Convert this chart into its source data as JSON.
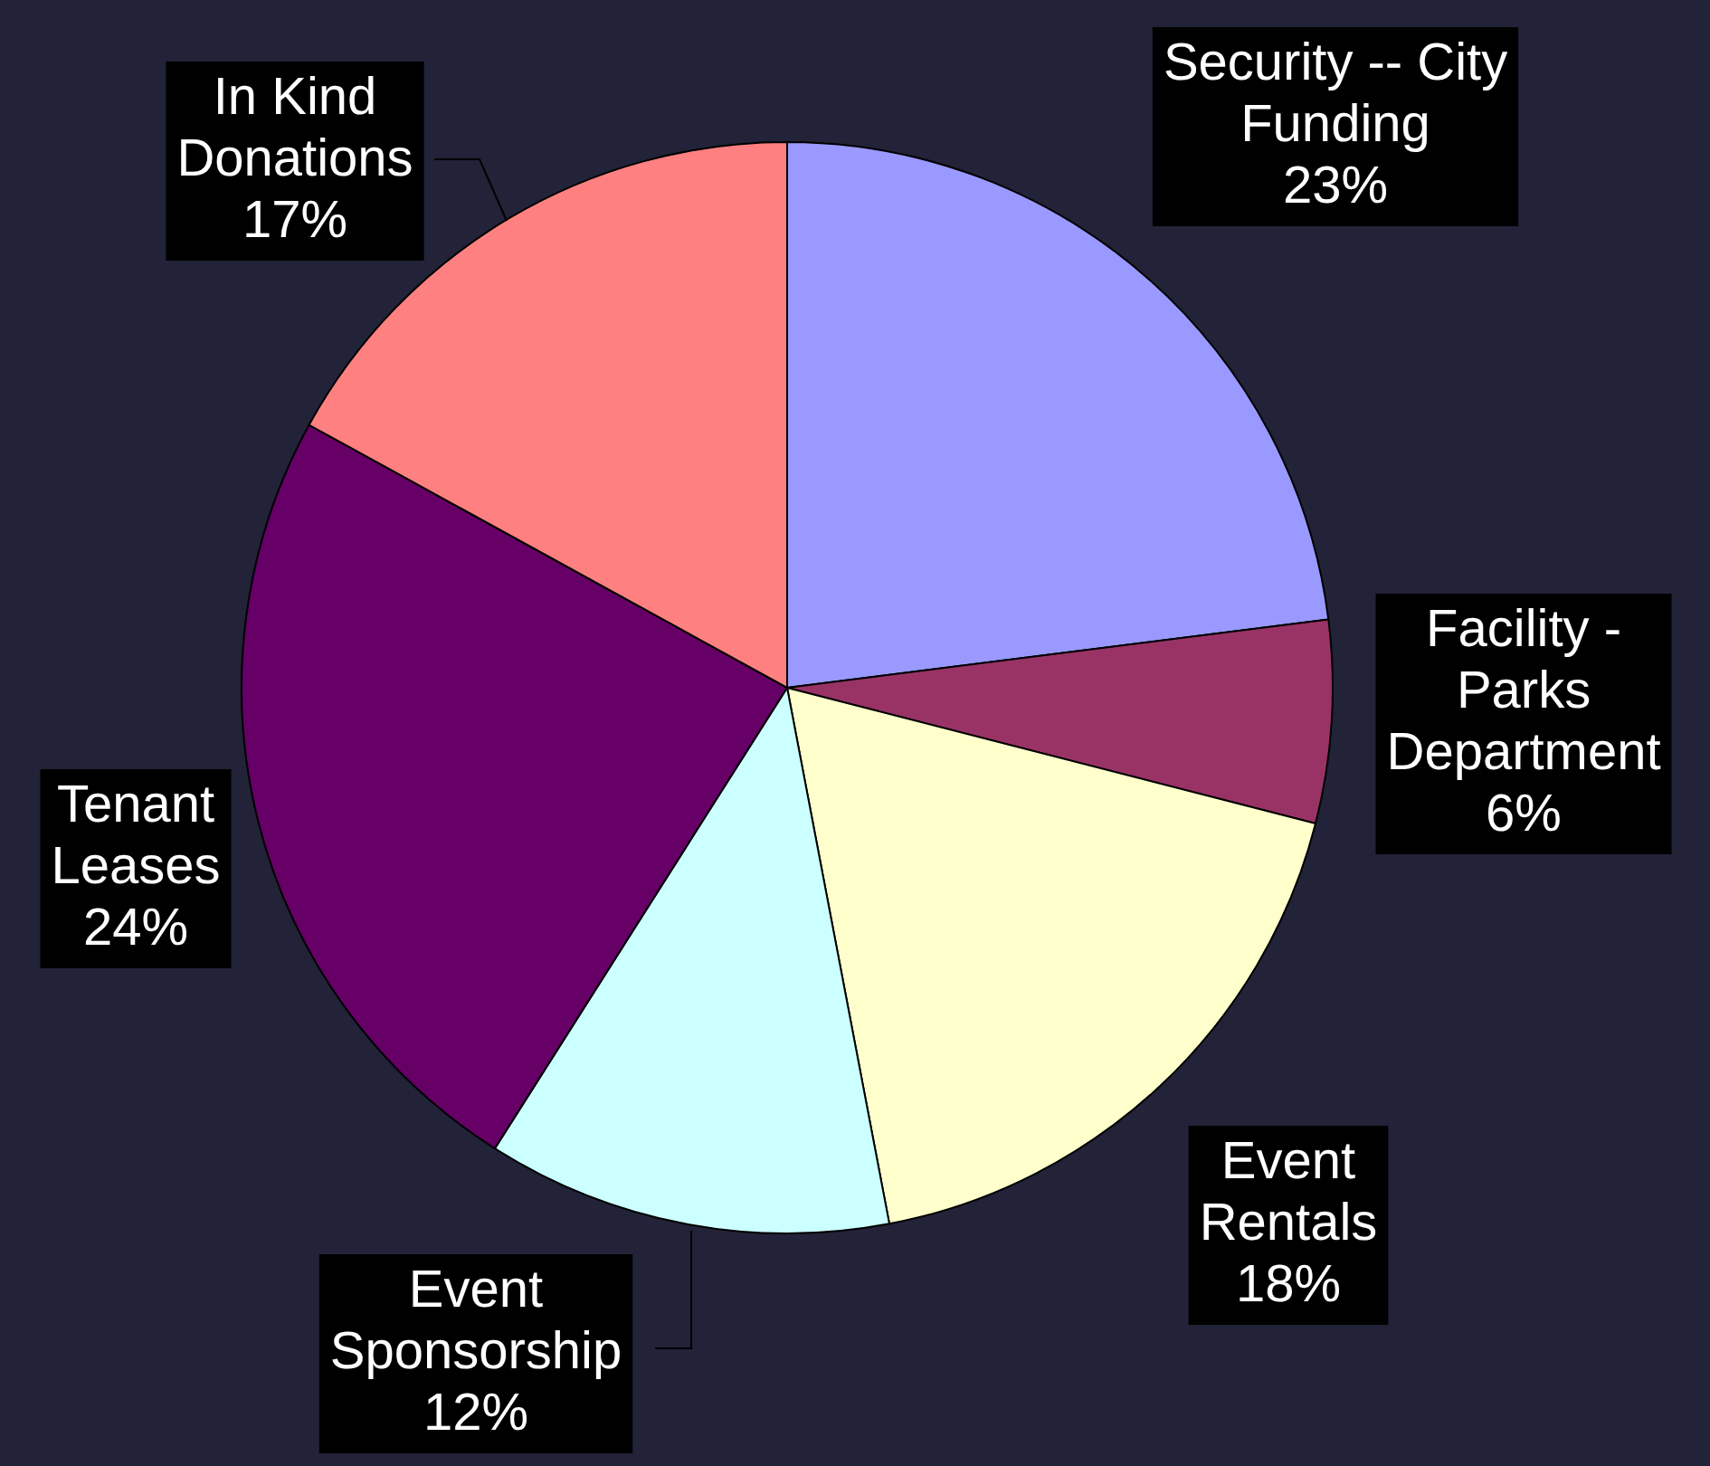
{
  "chart_data": {
    "type": "pie",
    "categories": [
      "Security -- City Funding",
      "Facility - Parks Department",
      "Event Rentals",
      "Event Sponsorship",
      "Tenant Leases",
      "In Kind Donations"
    ],
    "values": [
      23,
      6,
      18,
      12,
      24,
      17
    ],
    "value_labels": [
      "23%",
      "6%",
      "18%",
      "12%",
      "24%",
      "17%"
    ],
    "colors": [
      "#9999ff",
      "#993366",
      "#ffffcc",
      "#ccffff",
      "#660066",
      "#ff8080"
    ],
    "legend": false
  }
}
